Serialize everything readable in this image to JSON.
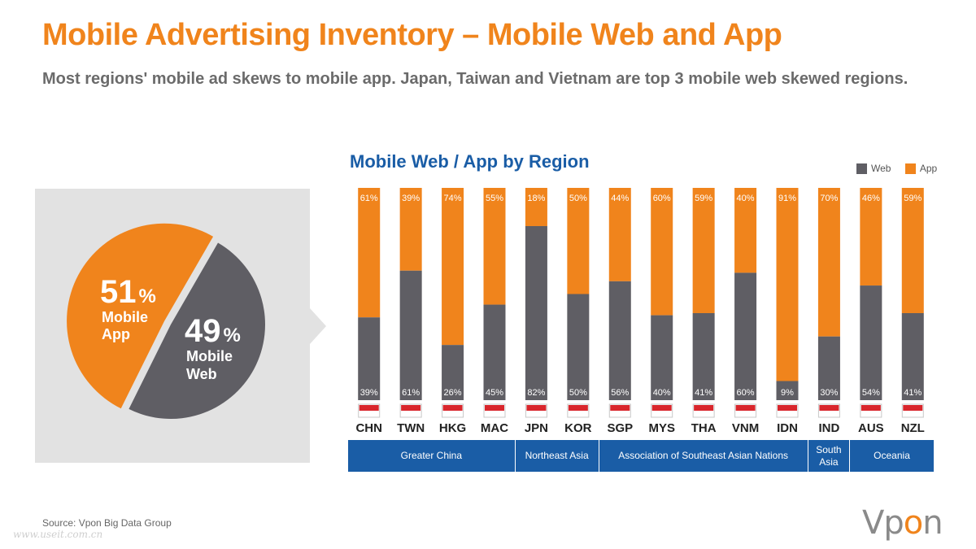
{
  "header": {
    "title": "Mobile Advertising Inventory – Mobile Web and App",
    "subtitle": "Most regions' mobile ad skews to mobile app. Japan,  Taiwan and Vietnam are top 3 mobile web skewed regions."
  },
  "pie": {
    "slices": [
      {
        "pct": "51",
        "label1": "Mobile",
        "label2": "App",
        "value": 51,
        "color": "#f0841c"
      },
      {
        "pct": "49",
        "label1": "Mobile",
        "label2": "Web",
        "value": 49,
        "color": "#5f5e64"
      }
    ],
    "percent_sign": "%"
  },
  "chart_data": {
    "type": "bar",
    "title": "Mobile Web / App by Region",
    "stacked": true,
    "percent_stacked": true,
    "categories": [
      "CHN",
      "TWN",
      "HKG",
      "MAC",
      "JPN",
      "KOR",
      "SGP",
      "MYS",
      "THA",
      "VNM",
      "IDN",
      "IND",
      "AUS",
      "NZL"
    ],
    "series": [
      {
        "name": "Web",
        "color": "#5f5e64",
        "values": [
          39,
          61,
          26,
          45,
          82,
          50,
          56,
          40,
          41,
          60,
          9,
          30,
          54,
          41
        ]
      },
      {
        "name": "App",
        "color": "#f0841c",
        "values": [
          61,
          39,
          74,
          55,
          18,
          50,
          44,
          60,
          59,
          40,
          91,
          70,
          46,
          59
        ]
      }
    ],
    "legend_position": "top-right",
    "ylim": [
      0,
      100
    ],
    "grid": false,
    "regions": [
      {
        "name": "Greater China",
        "count": 4
      },
      {
        "name": "Northeast Asia",
        "count": 2
      },
      {
        "name": "Association of Southeast Asian Nations",
        "count": 5
      },
      {
        "name": "South Asia",
        "count": 1
      },
      {
        "name": "Oceania",
        "count": 2
      }
    ]
  },
  "footer": {
    "source": "Source: Vpon Big Data Group",
    "watermark": "www.useit.com.cn",
    "logo_main": "Vp",
    "logo_accent": "o",
    "logo_end": "n"
  },
  "colors": {
    "accent": "#f0841c",
    "web": "#5f5e64",
    "region": "#1a5da6",
    "title_blue": "#1a5da6"
  }
}
